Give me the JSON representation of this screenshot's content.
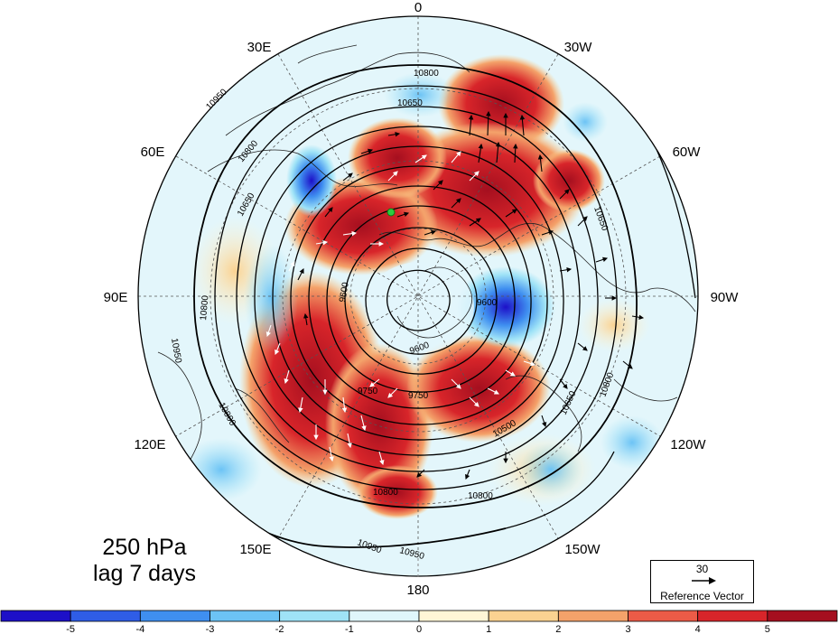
{
  "caption": {
    "level": "250 hPa",
    "lag": "lag 7 days"
  },
  "longitude_labels": [
    "0",
    "30W",
    "60W",
    "90W",
    "120W",
    "150W",
    "180",
    "150E",
    "120E",
    "90E",
    "60E",
    "30E"
  ],
  "contour_labels": [
    "10800",
    "10650",
    "10950",
    "10800",
    "10650",
    "9600",
    "9600",
    "9750",
    "9750",
    "10800",
    "10650",
    "10950",
    "10800",
    "10950",
    "10950",
    "10800",
    "10800",
    "10650",
    "10500",
    "10800",
    "9600"
  ],
  "reference_vector": {
    "value": "30",
    "label": "Reference Vector"
  },
  "colorbar": {
    "ticks": [
      "-5",
      "-4",
      "-3",
      "-2",
      "-1",
      "0",
      "1",
      "2",
      "3",
      "4",
      "5"
    ],
    "colors": [
      "#1d10c8",
      "#2f5de6",
      "#3f8ff0",
      "#6cc3f5",
      "#9fe3f7",
      "#dff6fb",
      "#fff6d6",
      "#fbd291",
      "#f4a26a",
      "#ec5b47",
      "#d8252a",
      "#a50f1f"
    ]
  },
  "colors": {
    "strong_positive": "#b0101c",
    "positive": "#e8453c",
    "weak_positive": "#fbd8a8",
    "strong_negative": "#2c55d6",
    "negative": "#59a8ee",
    "weak_negative": "#cdeff9",
    "ocean_background": "#e3f6fb",
    "marker": "#2ecc40"
  }
}
